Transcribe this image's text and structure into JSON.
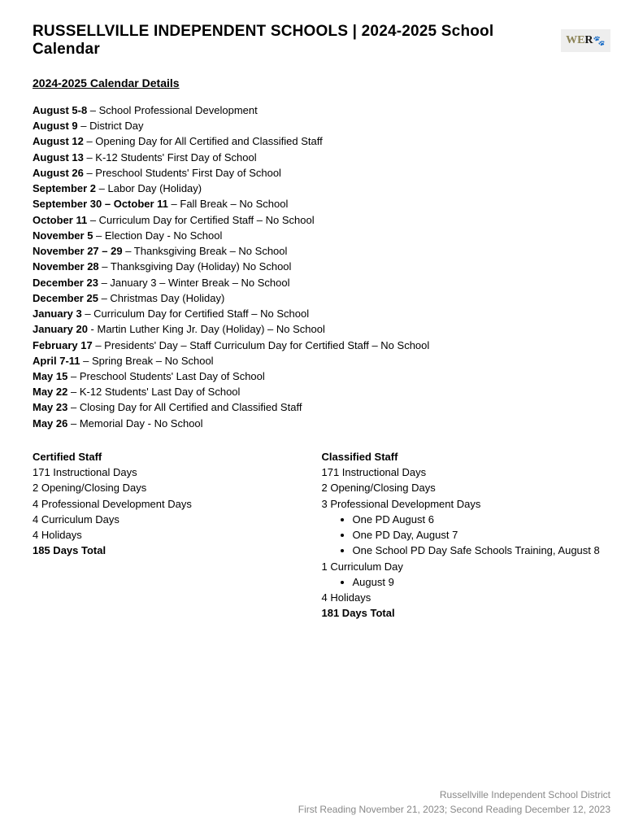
{
  "header": {
    "title": "RUSSELLVILLE INDEPENDENT SCHOOLS | 2024-2025 School Calendar",
    "logo_we": "WE",
    "logo_r": "R",
    "logo_mark": "🐾"
  },
  "subheading": "2024-2025 Calendar Details",
  "events": [
    {
      "date": "August 5-8",
      "desc": " – School Professional Development"
    },
    {
      "date": "August 9",
      "desc": " – District Day"
    },
    {
      "date": "August 12",
      "desc": " – Opening Day for All Certified and Classified Staff"
    },
    {
      "date": "August 13",
      "desc": " – K-12 Students' First Day of School"
    },
    {
      "date": "August 26",
      "desc": " – Preschool Students' First Day of School"
    },
    {
      "date": "September 2",
      "desc": " – Labor Day (Holiday)"
    },
    {
      "date": "September 30 – October 11",
      "desc": " – Fall Break – No School"
    },
    {
      "date": "October 11",
      "desc": " – Curriculum Day for Certified Staff – No School"
    },
    {
      "date": "November 5",
      "desc": " – Election Day - No School"
    },
    {
      "date": "November 27 – 29",
      "desc": " – Thanksgiving Break – No School"
    },
    {
      "date": "November 28",
      "desc": " – Thanksgiving Day (Holiday) No School"
    },
    {
      "date": "December 23",
      "desc": " – January 3 – Winter Break – No School"
    },
    {
      "date": "December 25",
      "desc": " – Christmas Day (Holiday)"
    },
    {
      "date": "January 3",
      "desc": " – Curriculum Day for Certified Staff – No School"
    },
    {
      "date": "January 20",
      "desc": " - Martin Luther King Jr. Day (Holiday) – No School"
    },
    {
      "date": "February 17",
      "desc": " – Presidents' Day – Staff Curriculum Day for Certified Staff – No School"
    },
    {
      "date": "April 7-11",
      "desc": " – Spring Break – No School"
    },
    {
      "date": "May 15",
      "desc": " – Preschool Students' Last Day of School"
    },
    {
      "date": "May 22",
      "desc": " – K-12 Students' Last Day of School"
    },
    {
      "date": "May 23",
      "desc": " – Closing Day for All Certified and Classified Staff"
    },
    {
      "date": "May 26",
      "desc": " – Memorial Day - No School"
    }
  ],
  "certified": {
    "heading": "Certified Staff",
    "lines": [
      "171 Instructional Days",
      "2 Opening/Closing Days",
      "4 Professional Development Days",
      "4 Curriculum Days",
      "4 Holidays"
    ],
    "total": "185 Days Total"
  },
  "classified": {
    "heading": "Classified Staff",
    "line0": "171 Instructional Days",
    "line1": "2 Opening/Closing Days",
    "line2": "3 Professional Development Days",
    "pd_bullets": [
      "One PD August 6",
      "One PD Day, August 7",
      "One School PD Day Safe Schools Training, August 8"
    ],
    "line3": "1 Curriculum Day",
    "cd_bullets": [
      "August 9"
    ],
    "line4": "4 Holidays",
    "total": "181 Days Total"
  },
  "footer": {
    "line1": "Russellville Independent School District",
    "line2": "First Reading November 21, 2023; Second Reading December 12, 2023"
  }
}
